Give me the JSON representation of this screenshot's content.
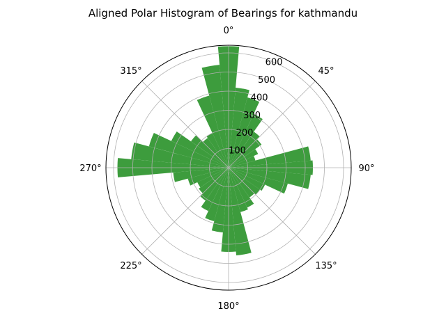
{
  "chart_data": {
    "type": "bar",
    "polar": true,
    "title": "Aligned Polar Histogram of Bearings for kathmandu",
    "bin_width_deg": 10,
    "bin_centers_deg": [
      0,
      10,
      20,
      30,
      40,
      50,
      60,
      70,
      80,
      90,
      100,
      110,
      120,
      130,
      140,
      150,
      160,
      170,
      180,
      190,
      200,
      210,
      220,
      230,
      240,
      250,
      260,
      270,
      280,
      290,
      300,
      310,
      320,
      330,
      340,
      350
    ],
    "values": [
      635,
      420,
      380,
      310,
      230,
      210,
      170,
      145,
      430,
      440,
      430,
      320,
      210,
      200,
      190,
      230,
      240,
      460,
      440,
      340,
      290,
      250,
      210,
      190,
      180,
      220,
      290,
      580,
      510,
      430,
      330,
      240,
      190,
      200,
      390,
      540
    ],
    "color": "#3d9c3d",
    "r_ticks": [
      100,
      200,
      300,
      400,
      500,
      600
    ],
    "r_tick_labels": [
      "100",
      "200",
      "300",
      "400",
      "500",
      "600"
    ],
    "rlim": [
      0,
      640
    ],
    "theta_zero_location": "N",
    "theta_direction": "clockwise",
    "theta_ticks": [
      0,
      45,
      90,
      135,
      180,
      225,
      270,
      315
    ],
    "theta_tick_labels": [
      "0°",
      "45°",
      "90°",
      "135°",
      "180°",
      "225°",
      "270°",
      "315°"
    ],
    "grid": true
  }
}
